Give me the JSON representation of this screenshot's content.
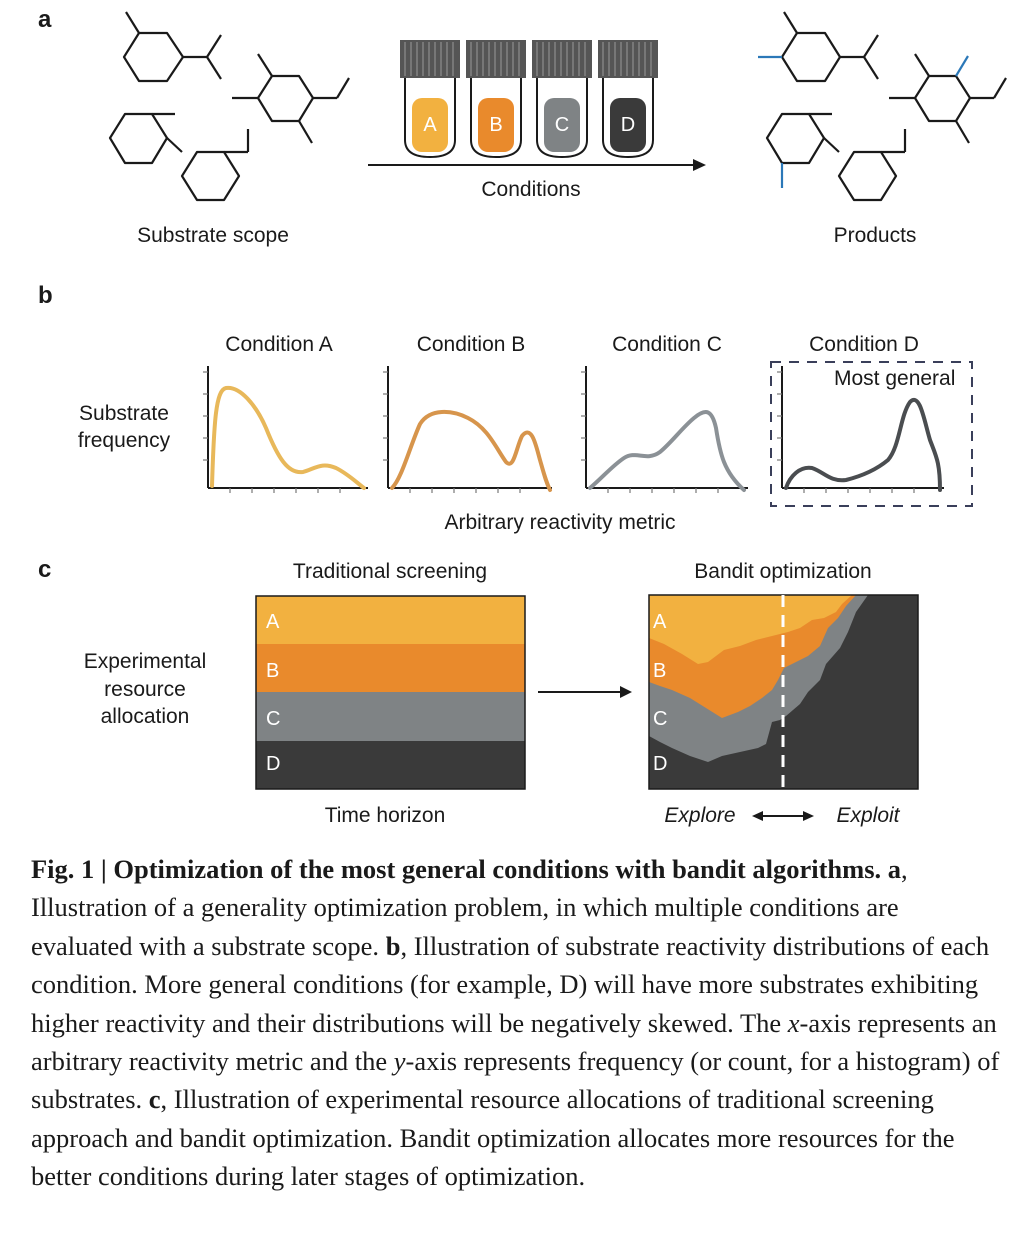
{
  "panels": {
    "a": {
      "letter": "a",
      "substrate_label": "Substrate scope",
      "conditions_label": "Conditions",
      "products_label": "Products",
      "vials": [
        "A",
        "B",
        "C",
        "D"
      ],
      "colors": {
        "A": "#f2b140",
        "B": "#e98a2c",
        "C": "#7f8385",
        "D": "#3a3a3a",
        "bond_new": "#2b78b8"
      }
    },
    "b": {
      "letter": "b",
      "ylabel_line1": "Substrate",
      "ylabel_line2": "frequency",
      "xlabel": "Arbitrary reactivity metric",
      "conditions": [
        "Condition A",
        "Condition B",
        "Condition C",
        "Condition D"
      ],
      "highlight_label": "Most general",
      "curve_colors": [
        "#e8b85a",
        "#d7954c",
        "#8b9196",
        "#4a4d50"
      ]
    },
    "c": {
      "letter": "c",
      "left_title": "Traditional screening",
      "right_title": "Bandit optimization",
      "ylabel_line1": "Experimental",
      "ylabel_line2": "resource",
      "ylabel_line3": "allocation",
      "left_xlabel": "Time horizon",
      "explore_label": "Explore",
      "exploit_label": "Exploit",
      "stack_labels": [
        "A",
        "B",
        "C",
        "D"
      ]
    }
  },
  "caption": {
    "fig_label": "Fig. 1 | Optimization of the most general conditions with bandit algorithms.",
    "a_letter": "a",
    "a_text": ", Illustration of a generality optimization problem, in which multiple conditions are evaluated with a substrate scope.",
    "b_letter": "b",
    "b_text_1": ", Illustration of substrate reactivity distributions of each condition. More general conditions (for example, D) will have more substrates exhibiting higher reactivity and their distributions will be negatively skewed. The ",
    "x_var": "x",
    "b_text_2": "-axis represents an arbitrary reactivity metric and the ",
    "y_var": "y",
    "b_text_3": "-axis represents frequency (or count, for a histogram) of substrates.",
    "c_letter": "c",
    "c_text": ", Illustration of experimental resource allocations of traditional screening approach and bandit optimization. Bandit optimization allocates more resources for the better conditions during later stages of optimization."
  }
}
